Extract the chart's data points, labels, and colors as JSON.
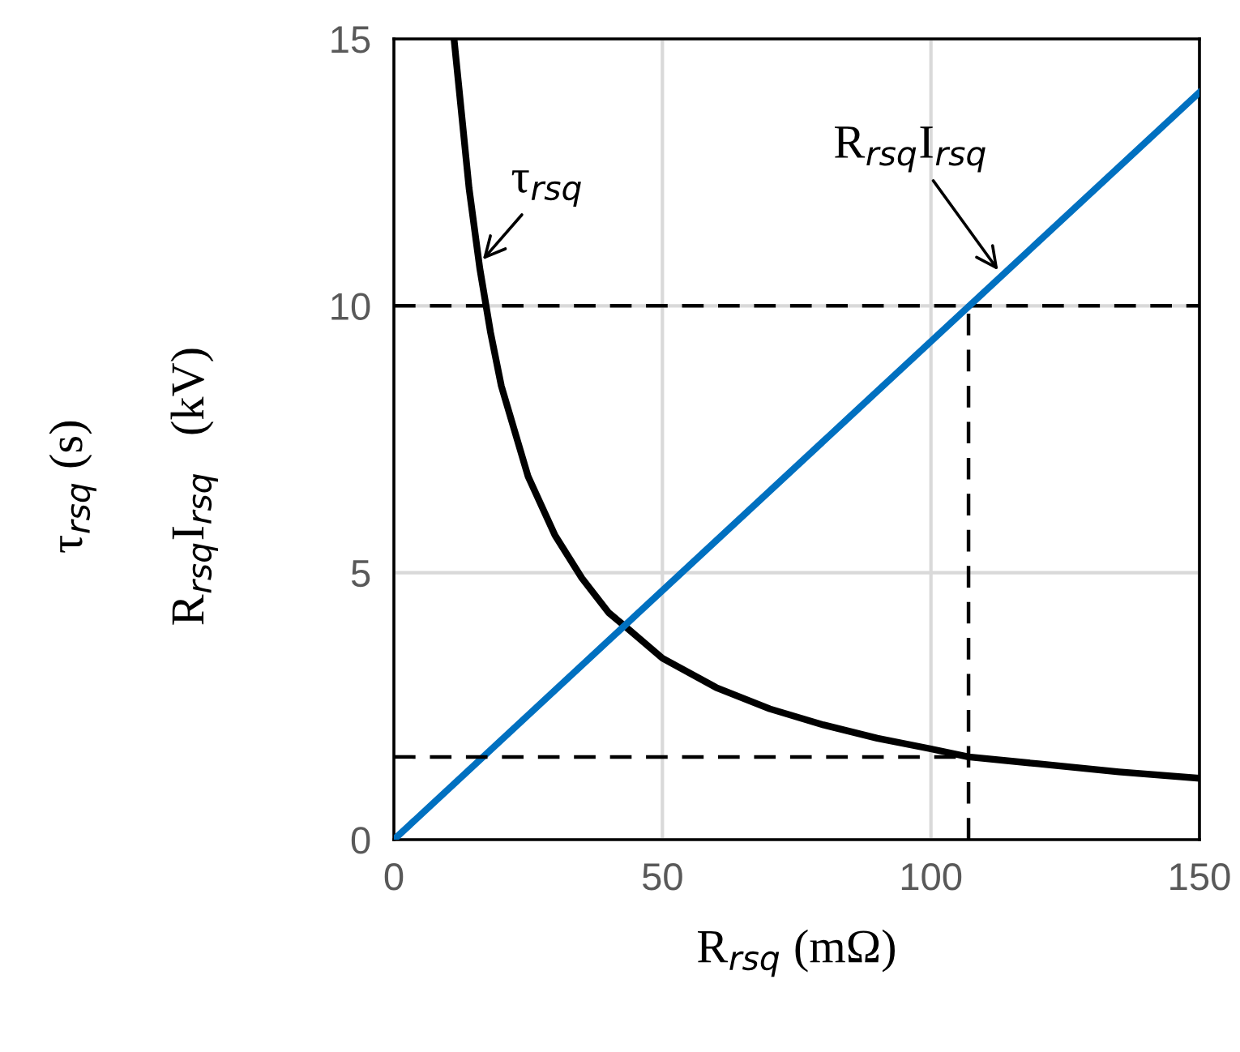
{
  "chart_data": {
    "type": "line",
    "xlabel": "R$_{rsq}$ (mΩ)",
    "ylabel": [
      "τ$_{rsq}$ (s)",
      "R$_{rsq}$I$_{rsq}$   (kV)"
    ],
    "xlim": [
      0,
      150
    ],
    "ylim": [
      0,
      15
    ],
    "xticks": [
      0,
      50,
      100,
      150
    ],
    "yticks": [
      0,
      5,
      10,
      15
    ],
    "grid": true,
    "marker": "none",
    "series": [
      {
        "color": "#000000",
        "x": [
          11.2,
          12,
          14,
          16,
          18,
          20,
          25,
          30,
          35,
          40,
          43,
          50,
          60,
          70,
          80,
          90,
          100,
          107,
          120,
          135,
          150
        ],
        "values": [
          15,
          14.2,
          12.2,
          10.7,
          9.5,
          8.5,
          6.8,
          5.7,
          4.9,
          4.25,
          4.0,
          3.4,
          2.85,
          2.45,
          2.15,
          1.9,
          1.7,
          1.55,
          1.42,
          1.27,
          1.15
        ]
      },
      {
        "color": "#0070c0",
        "x": [
          0,
          150
        ],
        "values": [
          0,
          14.0
        ]
      },
      {
        "color": "#000000",
        "line_style": "dashed",
        "x": [
          0,
          107
        ],
        "values": [
          1.55,
          1.55
        ]
      },
      {
        "color": "#000000",
        "line_style": "dashed",
        "x": [
          107,
          107
        ],
        "values": [
          0,
          10
        ]
      }
    ],
    "ref_lines": [
      {
        "axis": "y",
        "value": 10,
        "color": "#000000",
        "line_style": "dashed"
      }
    ],
    "annotations": [
      {
        "text": "τ$_{rsq}$",
        "x": 16,
        "y": 10.8
      },
      {
        "text": "R$_{rsq}$I$_{rsq}$",
        "x": 113,
        "y": 10.6
      }
    ]
  }
}
